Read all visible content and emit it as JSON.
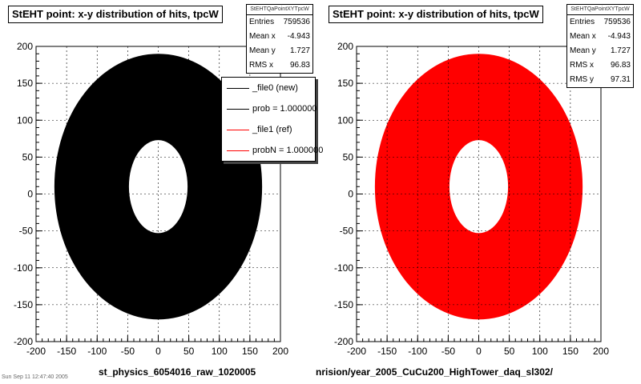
{
  "chart_data": [
    {
      "type": "heatmap",
      "title": "StEHT point: x-y distribution of hits, tpcW",
      "xlim": [
        -200,
        200
      ],
      "ylim": [
        -200,
        200
      ],
      "x_ticks": [
        "-200",
        "-150",
        "-100",
        "-50",
        "0",
        "50",
        "100",
        "150",
        "200"
      ],
      "y_ticks": [
        "200",
        "150",
        "100",
        "50",
        "0",
        "-50",
        "-100",
        "-150",
        "-200"
      ],
      "grid": true,
      "color": "#000000",
      "stats": {
        "name": "StEHTQaPointXYTpcW",
        "rows": [
          {
            "label": "Entries",
            "value": "759536"
          },
          {
            "label": "Mean x",
            "value": "-4.943"
          },
          {
            "label": "Mean y",
            "value": "1.727"
          },
          {
            "label": "RMS x",
            "value": "96.83"
          }
        ]
      },
      "legend": {
        "placement": "top-right",
        "entries": [
          {
            "label": "_file0 (new)",
            "color": "#000000"
          },
          {
            "label": "prob = 1.000000",
            "color": "#000000"
          },
          {
            "label": "_file1 (ref)",
            "color": "#ff0000"
          },
          {
            "label": "probN = 1.000000",
            "color": "#ff0000"
          }
        ]
      },
      "bottom_label": "st_physics_6054016_raw_1020005"
    },
    {
      "type": "heatmap",
      "title": "StEHT point: x-y distribution of hits, tpcW",
      "xlim": [
        -200,
        200
      ],
      "ylim": [
        -200,
        200
      ],
      "x_ticks": [
        "-200",
        "-150",
        "-100",
        "-50",
        "0",
        "50",
        "100",
        "150",
        "200"
      ],
      "y_ticks": [
        "200",
        "150",
        "100",
        "50",
        "0",
        "-50",
        "-100",
        "-150",
        "-200"
      ],
      "grid": true,
      "color": "#ff0000",
      "stats": {
        "name": "StEHTQaPointXYTpcW",
        "rows": [
          {
            "label": "Entries",
            "value": "759536"
          },
          {
            "label": "Mean x",
            "value": "-4.943"
          },
          {
            "label": "Mean y",
            "value": "1.727"
          },
          {
            "label": "RMS x",
            "value": "96.83"
          },
          {
            "label": "RMS y",
            "value": "97.31"
          }
        ]
      },
      "bottom_label": "nrision/year_2005_CuCu200_HighTower_daq_sl302/"
    }
  ],
  "footer_text": "Sun Sep 11 12:47:40 2005"
}
